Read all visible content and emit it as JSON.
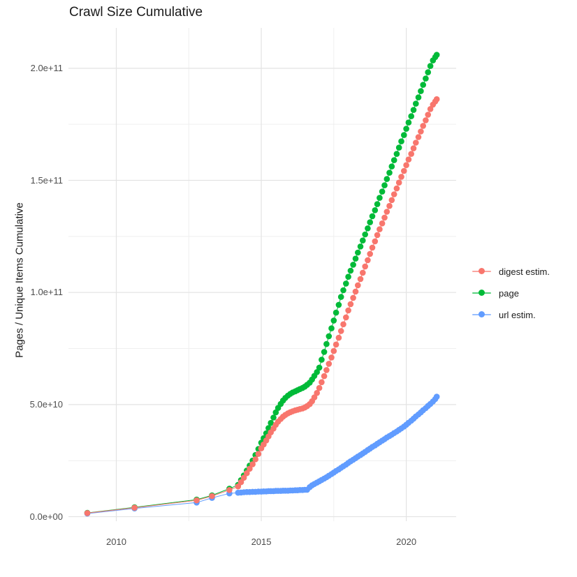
{
  "title": "Crawl Size Cumulative",
  "axes": {
    "x": {
      "ticks": [
        {
          "label": "2010",
          "value": 2010
        },
        {
          "label": "2015",
          "value": 2015
        },
        {
          "label": "2020",
          "value": 2020
        }
      ],
      "minor": [
        2012.5,
        2017.5
      ],
      "range": [
        2008.35,
        2021.72
      ]
    },
    "y": {
      "label": "Pages / Unique Items Cumulative",
      "ticks": [
        {
          "label": "0.0e+00",
          "value": 0
        },
        {
          "label": "5.0e+10",
          "value": 50
        },
        {
          "label": "1.0e+11",
          "value": 100
        },
        {
          "label": "1.5e+11",
          "value": 150
        },
        {
          "label": "2.0e+11",
          "value": 200
        }
      ],
      "minor": [
        25,
        75,
        125,
        175
      ],
      "range": [
        -2,
        218
      ],
      "unit": "1e9"
    }
  },
  "legend": {
    "items": [
      {
        "label": "digest estim.",
        "color": "#F8766D"
      },
      {
        "label": "page",
        "color": "#00BA38"
      },
      {
        "label": "url estim.",
        "color": "#619CFF"
      }
    ]
  },
  "colors": {
    "background": "#ffffff",
    "grid_major": "#e3e3e3",
    "grid_minor": "#efefef",
    "tick_text": "#4d4d4d",
    "title_text": "#1a1a1a"
  },
  "chart_data": {
    "type": "scatter",
    "title": "Crawl Size Cumulative",
    "xlabel": "",
    "ylabel": "Pages / Unique Items Cumulative",
    "x_unit": "year",
    "y_unit": "count (values in billions, 1e9)",
    "x_range": [
      2008.35,
      2021.72
    ],
    "y_range_e9": [
      -2,
      218
    ],
    "grid": true,
    "legend_position": "right",
    "marker_radius": 4.3,
    "draw_order": [
      1,
      2,
      0
    ],
    "series": [
      {
        "name": "digest estim.",
        "color": "#F8766D",
        "points": [
          [
            2009.0,
            1.6
          ],
          [
            2010.63,
            4.0
          ],
          [
            2012.77,
            7.3
          ],
          [
            2013.3,
            9.2
          ],
          [
            2013.9,
            11.9
          ],
          [
            2014.2,
            13.5
          ],
          [
            2014.3,
            15.4
          ],
          [
            2014.4,
            17.4
          ],
          [
            2014.5,
            19.4
          ],
          [
            2014.6,
            21.4
          ],
          [
            2014.7,
            23.4
          ],
          [
            2014.8,
            25.6
          ],
          [
            2014.9,
            28.0
          ],
          [
            2015.0,
            30.5
          ],
          [
            2015.08,
            32.2
          ],
          [
            2015.17,
            34.0
          ],
          [
            2015.25,
            35.8
          ],
          [
            2015.33,
            37.6
          ],
          [
            2015.42,
            39.3
          ],
          [
            2015.5,
            41.0
          ],
          [
            2015.58,
            42.4
          ],
          [
            2015.67,
            43.6
          ],
          [
            2015.75,
            44.6
          ],
          [
            2015.83,
            45.4
          ],
          [
            2015.92,
            46.1
          ],
          [
            2016.0,
            46.6
          ],
          [
            2016.08,
            47.0
          ],
          [
            2016.17,
            47.4
          ],
          [
            2016.25,
            47.7
          ],
          [
            2016.33,
            48.0
          ],
          [
            2016.42,
            48.3
          ],
          [
            2016.5,
            48.7
          ],
          [
            2016.58,
            49.3
          ],
          [
            2016.67,
            50.2
          ],
          [
            2016.75,
            51.5
          ],
          [
            2016.83,
            53.2
          ],
          [
            2016.92,
            55.2
          ],
          [
            2017.0,
            57.4
          ],
          [
            2017.08,
            60.0
          ],
          [
            2017.17,
            62.7
          ],
          [
            2017.25,
            65.4
          ],
          [
            2017.33,
            68.2
          ],
          [
            2017.42,
            71.0
          ],
          [
            2017.5,
            73.9
          ],
          [
            2017.58,
            76.8
          ],
          [
            2017.67,
            79.8
          ],
          [
            2017.75,
            82.8
          ],
          [
            2017.83,
            85.8
          ],
          [
            2017.92,
            88.9
          ],
          [
            2018.0,
            92.0
          ],
          [
            2018.08,
            94.8
          ],
          [
            2018.17,
            97.6
          ],
          [
            2018.25,
            100.4
          ],
          [
            2018.33,
            103.2
          ],
          [
            2018.42,
            106.0
          ],
          [
            2018.5,
            108.8
          ],
          [
            2018.58,
            111.6
          ],
          [
            2018.67,
            114.4
          ],
          [
            2018.75,
            117.2
          ],
          [
            2018.83,
            120.0
          ],
          [
            2018.92,
            122.8
          ],
          [
            2019.0,
            125.6
          ],
          [
            2019.08,
            128.2
          ],
          [
            2019.17,
            130.8
          ],
          [
            2019.25,
            133.4
          ],
          [
            2019.33,
            136.0
          ],
          [
            2019.42,
            138.6
          ],
          [
            2019.5,
            141.2
          ],
          [
            2019.58,
            143.8
          ],
          [
            2019.67,
            146.4
          ],
          [
            2019.75,
            149.0
          ],
          [
            2019.83,
            151.6
          ],
          [
            2019.92,
            154.2
          ],
          [
            2020.0,
            156.8
          ],
          [
            2020.08,
            159.3
          ],
          [
            2020.17,
            161.8
          ],
          [
            2020.25,
            164.3
          ],
          [
            2020.33,
            166.8
          ],
          [
            2020.42,
            169.3
          ],
          [
            2020.5,
            171.8
          ],
          [
            2020.58,
            174.3
          ],
          [
            2020.67,
            176.8
          ],
          [
            2020.75,
            179.3
          ],
          [
            2020.83,
            181.8
          ],
          [
            2020.92,
            183.8
          ],
          [
            2021.0,
            185.2
          ],
          [
            2021.05,
            186.2
          ]
        ]
      },
      {
        "name": "page",
        "color": "#00BA38",
        "points": [
          [
            2009.0,
            1.7
          ],
          [
            2010.63,
            4.2
          ],
          [
            2012.77,
            7.6
          ],
          [
            2013.3,
            9.5
          ],
          [
            2013.9,
            12.5
          ],
          [
            2014.2,
            14.2
          ],
          [
            2014.3,
            16.3
          ],
          [
            2014.4,
            18.4
          ],
          [
            2014.5,
            20.6
          ],
          [
            2014.6,
            22.8
          ],
          [
            2014.7,
            25.0
          ],
          [
            2014.8,
            27.5
          ],
          [
            2014.9,
            30.2
          ],
          [
            2015.0,
            33.0
          ],
          [
            2015.08,
            35.0
          ],
          [
            2015.17,
            37.2
          ],
          [
            2015.25,
            39.5
          ],
          [
            2015.33,
            41.8
          ],
          [
            2015.42,
            44.2
          ],
          [
            2015.5,
            46.5
          ],
          [
            2015.58,
            48.5
          ],
          [
            2015.67,
            50.3
          ],
          [
            2015.75,
            51.8
          ],
          [
            2015.83,
            53.0
          ],
          [
            2015.92,
            54.0
          ],
          [
            2016.0,
            54.8
          ],
          [
            2016.08,
            55.4
          ],
          [
            2016.17,
            55.9
          ],
          [
            2016.25,
            56.4
          ],
          [
            2016.33,
            56.9
          ],
          [
            2016.42,
            57.4
          ],
          [
            2016.5,
            58.0
          ],
          [
            2016.58,
            58.8
          ],
          [
            2016.67,
            59.8
          ],
          [
            2016.75,
            61.2
          ],
          [
            2016.83,
            62.8
          ],
          [
            2016.92,
            64.5
          ],
          [
            2017.0,
            66.5
          ],
          [
            2017.08,
            70.0
          ],
          [
            2017.17,
            73.5
          ],
          [
            2017.25,
            77.0
          ],
          [
            2017.33,
            80.5
          ],
          [
            2017.42,
            84.0
          ],
          [
            2017.5,
            87.5
          ],
          [
            2017.58,
            91.0
          ],
          [
            2017.67,
            94.5
          ],
          [
            2017.75,
            98.0
          ],
          [
            2017.83,
            101.0
          ],
          [
            2017.92,
            104.0
          ],
          [
            2018.0,
            107.0
          ],
          [
            2018.08,
            109.7
          ],
          [
            2018.17,
            112.4
          ],
          [
            2018.25,
            115.1
          ],
          [
            2018.33,
            117.8
          ],
          [
            2018.42,
            120.5
          ],
          [
            2018.5,
            123.2
          ],
          [
            2018.58,
            125.9
          ],
          [
            2018.67,
            128.6
          ],
          [
            2018.75,
            131.3
          ],
          [
            2018.83,
            134.0
          ],
          [
            2018.92,
            136.7
          ],
          [
            2019.0,
            139.4
          ],
          [
            2019.08,
            142.2
          ],
          [
            2019.17,
            145.0
          ],
          [
            2019.25,
            147.8
          ],
          [
            2019.33,
            150.6
          ],
          [
            2019.42,
            153.4
          ],
          [
            2019.5,
            156.2
          ],
          [
            2019.58,
            159.0
          ],
          [
            2019.67,
            161.8
          ],
          [
            2019.75,
            164.6
          ],
          [
            2019.83,
            167.4
          ],
          [
            2019.92,
            170.2
          ],
          [
            2020.0,
            173.0
          ],
          [
            2020.08,
            175.8
          ],
          [
            2020.17,
            178.6
          ],
          [
            2020.25,
            181.4
          ],
          [
            2020.33,
            184.2
          ],
          [
            2020.42,
            187.0
          ],
          [
            2020.5,
            189.8
          ],
          [
            2020.58,
            192.6
          ],
          [
            2020.67,
            195.4
          ],
          [
            2020.75,
            198.2
          ],
          [
            2020.83,
            201.0
          ],
          [
            2020.92,
            203.5
          ],
          [
            2021.0,
            205.0
          ],
          [
            2021.05,
            206.0
          ]
        ]
      },
      {
        "name": "url estim.",
        "color": "#619CFF",
        "points": [
          [
            2009.0,
            1.4
          ],
          [
            2010.63,
            3.7
          ],
          [
            2012.77,
            6.3
          ],
          [
            2013.3,
            8.4
          ],
          [
            2013.9,
            10.4
          ],
          [
            2014.2,
            10.7
          ],
          [
            2014.3,
            10.8
          ],
          [
            2014.4,
            10.9
          ],
          [
            2014.5,
            11.0
          ],
          [
            2014.6,
            11.0
          ],
          [
            2014.7,
            11.1
          ],
          [
            2014.8,
            11.1
          ],
          [
            2014.9,
            11.2
          ],
          [
            2015.0,
            11.2
          ],
          [
            2015.08,
            11.3
          ],
          [
            2015.17,
            11.3
          ],
          [
            2015.25,
            11.4
          ],
          [
            2015.33,
            11.4
          ],
          [
            2015.42,
            11.4
          ],
          [
            2015.5,
            11.5
          ],
          [
            2015.58,
            11.5
          ],
          [
            2015.67,
            11.5
          ],
          [
            2015.75,
            11.6
          ],
          [
            2015.83,
            11.6
          ],
          [
            2015.92,
            11.6
          ],
          [
            2016.0,
            11.7
          ],
          [
            2016.08,
            11.7
          ],
          [
            2016.17,
            11.8
          ],
          [
            2016.25,
            11.8
          ],
          [
            2016.33,
            11.9
          ],
          [
            2016.42,
            11.9
          ],
          [
            2016.5,
            12.0
          ],
          [
            2016.58,
            12.0
          ],
          [
            2016.67,
            13.2
          ],
          [
            2016.75,
            14.0
          ],
          [
            2016.83,
            14.6
          ],
          [
            2016.92,
            15.2
          ],
          [
            2017.0,
            15.8
          ],
          [
            2017.08,
            16.4
          ],
          [
            2017.17,
            17.0
          ],
          [
            2017.25,
            17.6
          ],
          [
            2017.33,
            18.3
          ],
          [
            2017.42,
            19.0
          ],
          [
            2017.5,
            19.7
          ],
          [
            2017.58,
            20.4
          ],
          [
            2017.67,
            21.1
          ],
          [
            2017.75,
            21.8
          ],
          [
            2017.83,
            22.5
          ],
          [
            2017.92,
            23.2
          ],
          [
            2018.0,
            24.0
          ],
          [
            2018.08,
            24.7
          ],
          [
            2018.17,
            25.4
          ],
          [
            2018.25,
            26.1
          ],
          [
            2018.33,
            26.8
          ],
          [
            2018.42,
            27.5
          ],
          [
            2018.5,
            28.2
          ],
          [
            2018.58,
            28.9
          ],
          [
            2018.67,
            29.7
          ],
          [
            2018.75,
            30.4
          ],
          [
            2018.83,
            31.1
          ],
          [
            2018.92,
            31.8
          ],
          [
            2019.0,
            32.5
          ],
          [
            2019.08,
            33.2
          ],
          [
            2019.17,
            33.9
          ],
          [
            2019.25,
            34.6
          ],
          [
            2019.33,
            35.3
          ],
          [
            2019.42,
            36.0
          ],
          [
            2019.5,
            36.6
          ],
          [
            2019.58,
            37.3
          ],
          [
            2019.67,
            38.0
          ],
          [
            2019.75,
            38.7
          ],
          [
            2019.83,
            39.4
          ],
          [
            2019.92,
            40.2
          ],
          [
            2020.0,
            41.0
          ],
          [
            2020.08,
            41.9
          ],
          [
            2020.17,
            42.8
          ],
          [
            2020.25,
            43.7
          ],
          [
            2020.33,
            44.7
          ],
          [
            2020.42,
            45.6
          ],
          [
            2020.5,
            46.5
          ],
          [
            2020.58,
            47.5
          ],
          [
            2020.67,
            48.4
          ],
          [
            2020.75,
            49.4
          ],
          [
            2020.83,
            50.3
          ],
          [
            2020.92,
            51.4
          ],
          [
            2021.0,
            52.5
          ],
          [
            2021.05,
            53.5
          ]
        ]
      }
    ]
  }
}
